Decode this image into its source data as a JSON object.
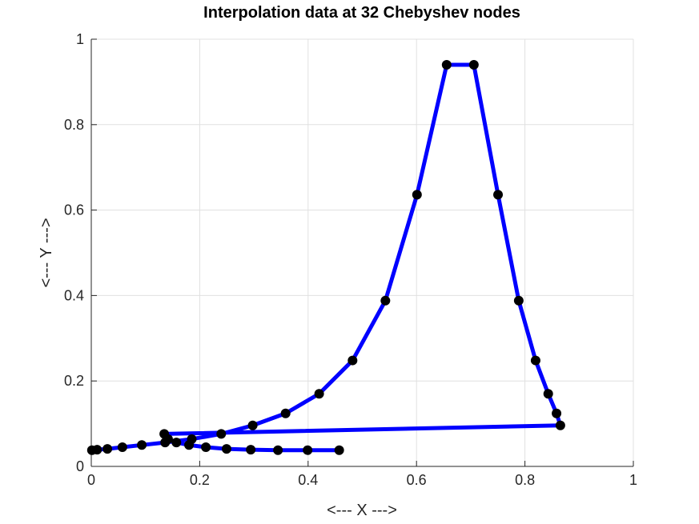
{
  "chart_data": {
    "type": "line",
    "title": "Interpolation data at 32 Chebyshev nodes",
    "xlabel": "<--- X --->",
    "ylabel": "<--- Y --->",
    "xlim": [
      0,
      1
    ],
    "ylim": [
      0,
      1
    ],
    "xticks": [
      0,
      0.2,
      0.4,
      0.6,
      0.8,
      1
    ],
    "yticks": [
      0,
      0.2,
      0.4,
      0.6,
      0.8,
      1
    ],
    "xtick_labels": [
      "0",
      "0.2",
      "0.4",
      "0.6",
      "0.8",
      "1"
    ],
    "ytick_labels": [
      "0",
      "0.2",
      "0.4",
      "0.6",
      "0.8",
      "1"
    ],
    "grid": true,
    "series": [
      {
        "line_color": "#0000ff",
        "marker_color": "#000000",
        "marker": "circle",
        "x": [
          0.0012,
          0.0108,
          0.0297,
          0.0574,
          0.0932,
          0.1362,
          0.1854,
          0.2397,
          0.2978,
          0.3585,
          0.4204,
          0.482,
          0.5426,
          0.6009,
          0.6556,
          0.7058,
          0.7504,
          0.7886,
          0.8197,
          0.843,
          0.8583,
          0.8654,
          0.1346,
          0.1417,
          0.157,
          0.1803,
          0.2114,
          0.2496,
          0.2942,
          0.3444,
          0.3991,
          0.4574
        ],
        "y": [
          0.038,
          0.039,
          0.041,
          0.045,
          0.05,
          0.056,
          0.064,
          0.076,
          0.096,
          0.124,
          0.17,
          0.248,
          0.388,
          0.636,
          0.94,
          0.94,
          0.636,
          0.388,
          0.248,
          0.17,
          0.124,
          0.096,
          0.076,
          0.064,
          0.056,
          0.05,
          0.045,
          0.041,
          0.039,
          0.038,
          0.038,
          0.038
        ]
      }
    ]
  }
}
